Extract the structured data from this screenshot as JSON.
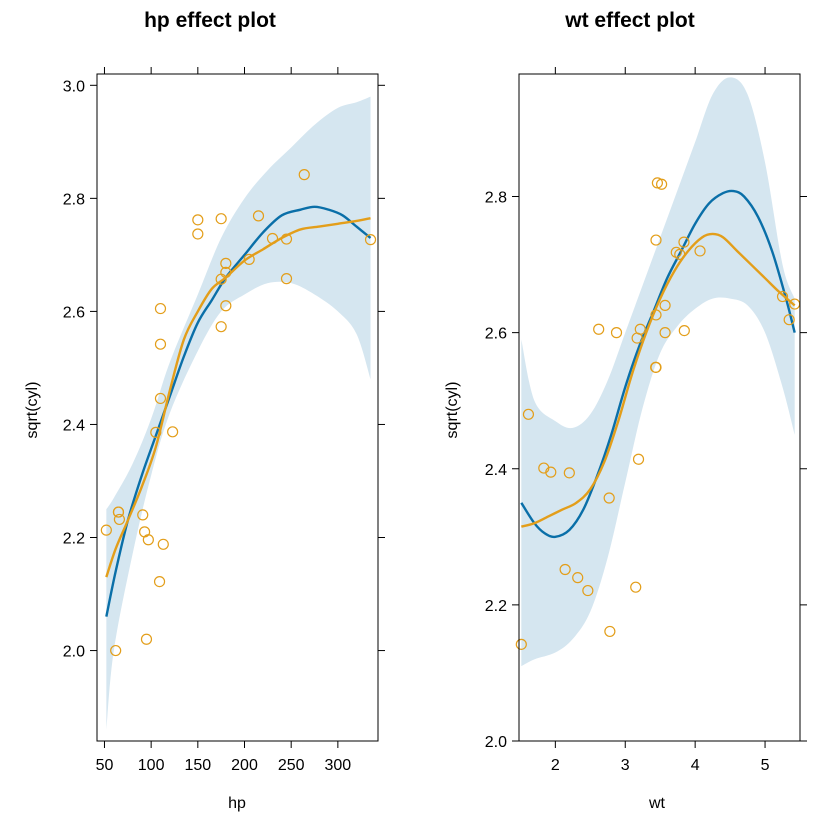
{
  "colors": {
    "band": "#d5e6f0",
    "fit": "#0a6fa8",
    "smooth": "#e39e1a",
    "points": "#e39e1a",
    "frame": "#000000"
  },
  "chart_data": [
    {
      "type": "line",
      "title": "hp effect plot",
      "xlabel": "hp",
      "ylabel": "sqrt(cyl)",
      "xlim": [
        42,
        343
      ],
      "ylim": [
        1.84,
        3.02
      ],
      "x_ticks": [
        50,
        100,
        150,
        200,
        250,
        300
      ],
      "x_tick_labels": [
        "50",
        "100",
        "150",
        "200",
        "250",
        "300"
      ],
      "y_ticks": [
        2.0,
        2.2,
        2.4,
        2.6,
        2.8,
        3.0
      ],
      "y_tick_labels": [
        "2.0",
        "2.2",
        "2.4",
        "2.6",
        "2.8",
        "3.0"
      ],
      "grid": false,
      "confidence_band": {
        "x": [
          52,
          60,
          80,
          100,
          120,
          150,
          175,
          200,
          225,
          250,
          275,
          300,
          320,
          335
        ],
        "lower": [
          1.86,
          2.0,
          2.17,
          2.31,
          2.42,
          2.53,
          2.6,
          2.63,
          2.65,
          2.65,
          2.63,
          2.6,
          2.56,
          2.48
        ],
        "upper": [
          2.25,
          2.27,
          2.33,
          2.41,
          2.51,
          2.63,
          2.73,
          2.8,
          2.85,
          2.89,
          2.93,
          2.96,
          2.97,
          2.98
        ]
      },
      "series": [
        {
          "name": "fit",
          "x": [
            52,
            62,
            75,
            90,
            105,
            120,
            135,
            150,
            165,
            180,
            200,
            220,
            240,
            260,
            275,
            290,
            305,
            320,
            335
          ],
          "y": [
            2.06,
            2.14,
            2.23,
            2.31,
            2.38,
            2.45,
            2.52,
            2.58,
            2.62,
            2.66,
            2.7,
            2.74,
            2.77,
            2.78,
            2.785,
            2.78,
            2.77,
            2.75,
            2.73
          ]
        },
        {
          "name": "smooth",
          "x": [
            52,
            62,
            75,
            90,
            105,
            120,
            135,
            150,
            165,
            180,
            200,
            220,
            240,
            260,
            280,
            300,
            320,
            335
          ],
          "y": [
            2.13,
            2.18,
            2.23,
            2.29,
            2.36,
            2.46,
            2.55,
            2.6,
            2.64,
            2.66,
            2.69,
            2.71,
            2.73,
            2.745,
            2.75,
            2.755,
            2.76,
            2.765
          ]
        },
        {
          "name": "points",
          "x": [
            52,
            62,
            65,
            65,
            66,
            91,
            93,
            95,
            97,
            105,
            109,
            110,
            110,
            110,
            113,
            123,
            150,
            150,
            175,
            175,
            175,
            180,
            180,
            180,
            205,
            215,
            230,
            245,
            245,
            264,
            335
          ],
          "y": [
            2.213,
            2.0,
            2.245,
            2.245,
            2.232,
            2.24,
            2.21,
            2.02,
            2.196,
            2.386,
            2.122,
            2.446,
            2.542,
            2.605,
            2.188,
            2.387,
            2.762,
            2.737,
            2.764,
            2.573,
            2.657,
            2.61,
            2.669,
            2.685,
            2.692,
            2.769,
            2.729,
            2.658,
            2.728,
            2.842,
            2.727
          ]
        }
      ]
    },
    {
      "type": "line",
      "title": "wt effect plot",
      "xlabel": "wt",
      "ylabel": "sqrt(cyl)",
      "xlim": [
        1.48,
        5.5
      ],
      "ylim": [
        2.0,
        2.98
      ],
      "x_ticks": [
        2,
        3,
        4,
        5
      ],
      "x_tick_labels": [
        "2",
        "3",
        "4",
        "5"
      ],
      "y_ticks": [
        2.0,
        2.2,
        2.4,
        2.6,
        2.8
      ],
      "y_tick_labels": [
        "2.0",
        "2.2",
        "2.4",
        "2.6",
        "2.8"
      ],
      "grid": false,
      "confidence_band": {
        "x": [
          1.513,
          1.7,
          2.0,
          2.25,
          2.5,
          2.75,
          3.0,
          3.25,
          3.5,
          3.75,
          4.0,
          4.25,
          4.5,
          4.75,
          5.0,
          5.25,
          5.424
        ],
        "lower": [
          2.11,
          2.12,
          2.13,
          2.15,
          2.19,
          2.27,
          2.38,
          2.49,
          2.57,
          2.61,
          2.635,
          2.65,
          2.65,
          2.64,
          2.6,
          2.52,
          2.45
        ],
        "upper": [
          2.59,
          2.5,
          2.47,
          2.46,
          2.48,
          2.53,
          2.6,
          2.67,
          2.74,
          2.81,
          2.88,
          2.95,
          2.975,
          2.95,
          2.85,
          2.7,
          2.65
        ]
      },
      "series": [
        {
          "name": "fit",
          "x": [
            1.513,
            1.7,
            1.85,
            2.0,
            2.2,
            2.4,
            2.6,
            2.8,
            3.0,
            3.2,
            3.4,
            3.6,
            3.8,
            4.0,
            4.2,
            4.4,
            4.55,
            4.7,
            4.9,
            5.1,
            5.3,
            5.424
          ],
          "y": [
            2.35,
            2.32,
            2.305,
            2.3,
            2.31,
            2.34,
            2.39,
            2.45,
            2.52,
            2.58,
            2.63,
            2.68,
            2.72,
            2.76,
            2.79,
            2.805,
            2.808,
            2.8,
            2.77,
            2.72,
            2.65,
            2.6
          ]
        },
        {
          "name": "smooth",
          "x": [
            1.513,
            1.7,
            1.9,
            2.1,
            2.3,
            2.5,
            2.7,
            2.9,
            3.1,
            3.3,
            3.5,
            3.7,
            3.9,
            4.1,
            4.25,
            4.4,
            4.6,
            4.8,
            5.0,
            5.2,
            5.424
          ],
          "y": [
            2.315,
            2.32,
            2.33,
            2.34,
            2.35,
            2.37,
            2.41,
            2.47,
            2.54,
            2.6,
            2.65,
            2.69,
            2.72,
            2.74,
            2.745,
            2.74,
            2.72,
            2.7,
            2.68,
            2.66,
            2.64
          ]
        },
        {
          "name": "points",
          "x": [
            1.513,
            1.615,
            1.835,
            1.935,
            2.14,
            2.2,
            2.32,
            2.465,
            2.62,
            2.77,
            2.78,
            2.875,
            3.15,
            3.17,
            3.19,
            3.215,
            3.435,
            3.44,
            3.44,
            3.44,
            3.46,
            3.52,
            3.57,
            3.57,
            3.73,
            3.78,
            3.84,
            3.845,
            4.07,
            5.25,
            5.345,
            5.424
          ],
          "y": [
            2.142,
            2.48,
            2.401,
            2.395,
            2.252,
            2.394,
            2.24,
            2.221,
            2.605,
            2.357,
            2.161,
            2.6,
            2.226,
            2.592,
            2.414,
            2.605,
            2.549,
            2.549,
            2.626,
            2.736,
            2.82,
            2.818,
            2.6,
            2.64,
            2.718,
            2.715,
            2.733,
            2.603,
            2.72,
            2.653,
            2.619,
            2.642
          ]
        }
      ]
    }
  ]
}
